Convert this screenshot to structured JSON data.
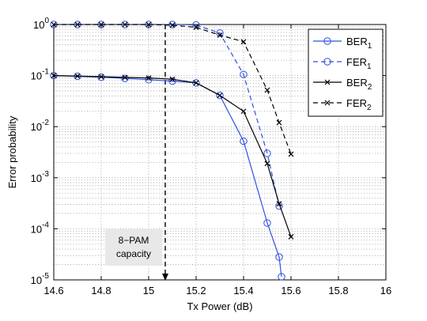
{
  "chart_data": {
    "type": "line",
    "xlabel": "Tx Power (dB)",
    "ylabel": "Error probability",
    "xlim": [
      14.6,
      16.0
    ],
    "ylim": [
      1e-05,
      1
    ],
    "yscale": "log",
    "grid": "on (dotted, major and minor)",
    "legend_position": "top-right",
    "x_ticks": [
      "14.6",
      "14.8",
      "15",
      "15.2",
      "15.4",
      "15.6",
      "15.8",
      "16"
    ],
    "y_ticks": [
      {
        "base": "10",
        "exp": "0"
      },
      {
        "base": "10",
        "exp": "-1"
      },
      {
        "base": "10",
        "exp": "-2"
      },
      {
        "base": "10",
        "exp": "-3"
      },
      {
        "base": "10",
        "exp": "-4"
      },
      {
        "base": "10",
        "exp": "-5"
      }
    ],
    "series": [
      {
        "name": "BER",
        "sub": "1",
        "color": "#3050e0",
        "dash": "solid",
        "marker": "circle",
        "x": [
          14.6,
          14.7,
          14.8,
          14.9,
          15.0,
          15.1,
          15.2,
          15.3,
          15.4,
          15.5,
          15.55,
          15.56
        ],
        "y": [
          0.1,
          0.097,
          0.093,
          0.088,
          0.083,
          0.078,
          0.072,
          0.041,
          0.0052,
          0.00013,
          2.8e-05,
          1.15e-05
        ]
      },
      {
        "name": "FER",
        "sub": "1",
        "color": "#3050e0",
        "dash": "dashed",
        "marker": "circle",
        "x": [
          14.6,
          14.7,
          14.8,
          14.9,
          15.0,
          15.1,
          15.2,
          15.3,
          15.4,
          15.5,
          15.55
        ],
        "y": [
          1.0,
          1.0,
          1.0,
          1.0,
          1.0,
          1.0,
          0.98,
          0.68,
          0.105,
          0.003,
          0.00028
        ]
      },
      {
        "name": "BER",
        "sub": "2",
        "color": "#000000",
        "dash": "solid",
        "marker": "x",
        "x": [
          14.6,
          14.7,
          14.8,
          14.9,
          15.0,
          15.1,
          15.2,
          15.3,
          15.4,
          15.5,
          15.55,
          15.6
        ],
        "y": [
          0.1,
          0.098,
          0.095,
          0.092,
          0.09,
          0.085,
          0.072,
          0.041,
          0.02,
          0.0019,
          0.00031,
          7e-05
        ]
      },
      {
        "name": "FER",
        "sub": "2",
        "color": "#000000",
        "dash": "dashed",
        "marker": "x",
        "x": [
          14.6,
          14.7,
          14.8,
          14.9,
          15.0,
          15.1,
          15.2,
          15.3,
          15.4,
          15.5,
          15.55,
          15.6
        ],
        "y": [
          1.0,
          1.0,
          1.0,
          1.0,
          1.0,
          0.97,
          0.88,
          0.62,
          0.46,
          0.052,
          0.012,
          0.0029
        ]
      }
    ],
    "annotations": [
      {
        "lines": [
          "8−PAM",
          "capacity"
        ],
        "arrow_x": 15.07,
        "arrow_from_y": 1.0,
        "arrow_to_y": 1e-05
      }
    ]
  }
}
